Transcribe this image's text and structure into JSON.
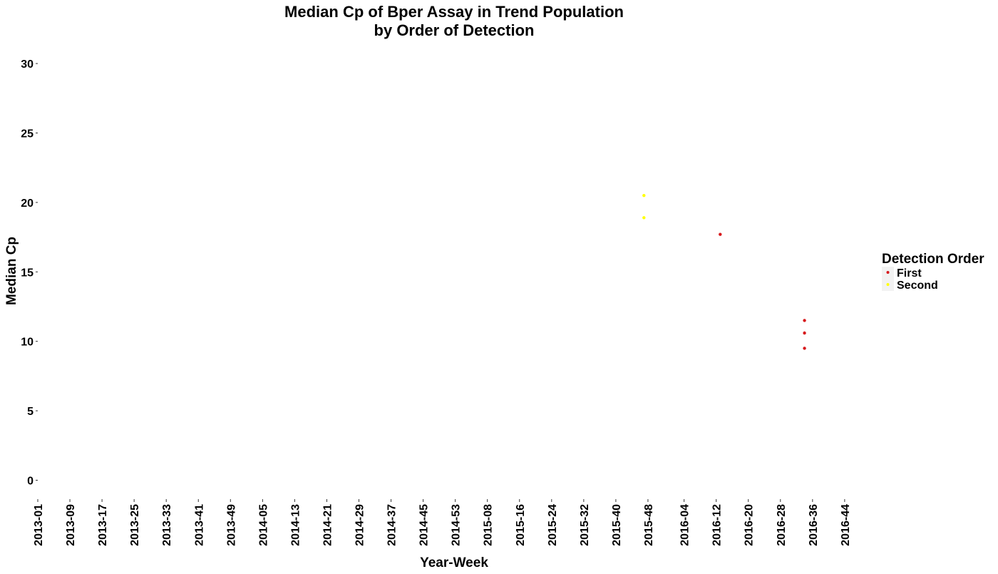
{
  "chart_data": {
    "type": "scatter",
    "title_lines": [
      "Median Cp of Bper Assay in Trend Population",
      "by Order of Detection"
    ],
    "xlabel": "Year-Week",
    "ylabel": "Median Cp",
    "ylim": [
      0,
      30
    ],
    "yticks": [
      0,
      5,
      10,
      15,
      20,
      25,
      30
    ],
    "xticks": [
      "2013-01",
      "2013-09",
      "2013-17",
      "2013-25",
      "2013-33",
      "2013-41",
      "2013-49",
      "2014-05",
      "2014-13",
      "2014-21",
      "2014-29",
      "2014-37",
      "2014-45",
      "2014-53",
      "2015-08",
      "2015-16",
      "2015-24",
      "2015-32",
      "2015-40",
      "2015-48",
      "2016-04",
      "2016-12",
      "2016-20",
      "2016-28",
      "2016-36",
      "2016-44"
    ],
    "x_category_step": 8,
    "grid": false,
    "legend": {
      "title": "Detection Order",
      "position": "right",
      "entries": [
        {
          "label": "First",
          "color": "#d7191c"
        },
        {
          "label": "Second",
          "color": "#ffff00"
        }
      ]
    },
    "series": [
      {
        "name": "First",
        "color": "#d7191c",
        "points": [
          {
            "x": "2016-13",
            "y": 17.7
          },
          {
            "x": "2016-34",
            "y": 11.5
          },
          {
            "x": "2016-34",
            "y": 10.6
          },
          {
            "x": "2016-34",
            "y": 9.5
          }
        ]
      },
      {
        "name": "Second",
        "color": "#ffff00",
        "points": [
          {
            "x": "2015-47",
            "y": 20.5
          },
          {
            "x": "2015-47",
            "y": 18.9
          }
        ]
      }
    ]
  }
}
